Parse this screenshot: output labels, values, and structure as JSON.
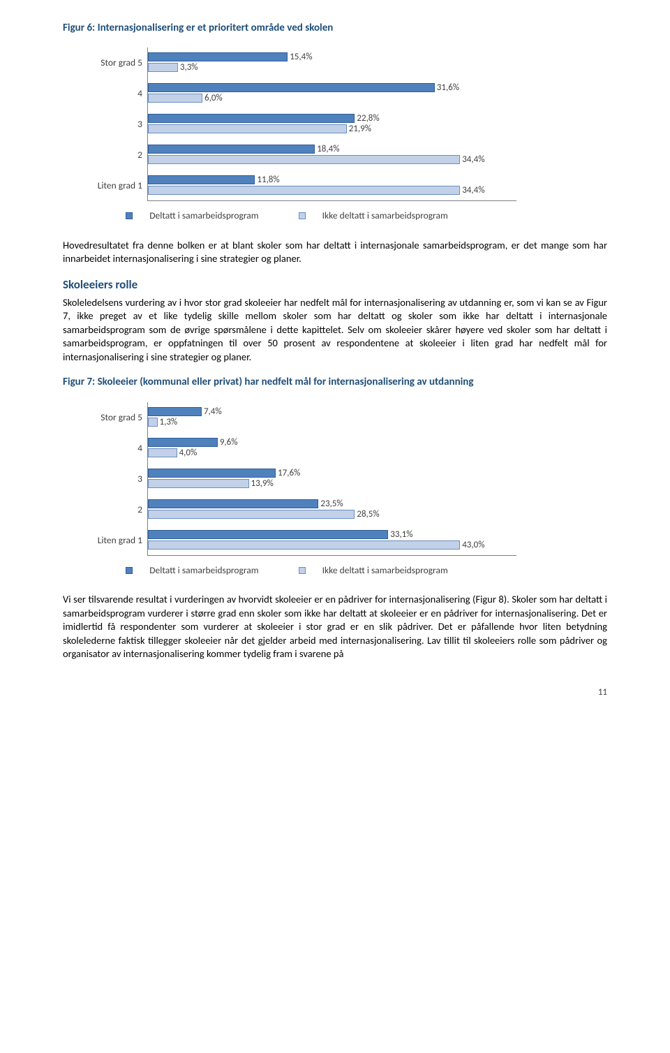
{
  "fig6": {
    "title": "Figur 6: Internasjonalisering er et prioritert område ved skolen",
    "type": "bar",
    "xmax": 40,
    "bar_colors": [
      "#4f81bd",
      "#c2d1e8"
    ],
    "axis_color": "#7f7f7f",
    "categories": [
      {
        "label": "Stor grad 5",
        "v1": 15.4,
        "v2": 3.3,
        "t1": "15,4%",
        "t2": "3,3%"
      },
      {
        "label": "4",
        "v1": 31.6,
        "v2": 6.0,
        "t1": "31,6%",
        "t2": "6,0%"
      },
      {
        "label": "3",
        "v1": 22.8,
        "v2": 21.9,
        "t1": "22,8%",
        "t2": "21,9%"
      },
      {
        "label": "2",
        "v1": 18.4,
        "v2": 34.4,
        "t1": "18,4%",
        "t2": "34,4%"
      },
      {
        "label": "Liten grad 1",
        "v1": 11.8,
        "v2": 34.4,
        "t1": "11,8%",
        "t2": "34,4%"
      }
    ],
    "legend1": "Deltatt i samarbeidsprogram",
    "legend2": "Ikke deltatt i samarbeidsprogram"
  },
  "para1": "Hovedresultatet fra denne bolken er at blant skoler som har deltatt i internasjonale samarbeidsprogram, er det mange som har innarbeidet internasjonalisering i sine strategier og planer.",
  "subheading": "Skoleeiers rolle",
  "para2": "Skoleledelsens vurdering av i hvor stor grad skoleeier har nedfelt mål for internasjonalisering av utdanning er, som vi kan se av Figur 7, ikke preget av et like tydelig skille mellom skoler som har deltatt og skoler som ikke har deltatt i internasjonale samarbeidsprogram som de øvrige spørsmålene i dette kapittelet. Selv om skoleeier skårer høyere ved skoler som har deltatt i samarbeidsprogram, er oppfatningen til over 50 prosent av respondentene at skoleeier i liten grad har nedfelt mål for internasjonalisering i sine strategier og planer.",
  "fig7": {
    "title": "Figur 7: Skoleeier (kommunal eller privat) har nedfelt mål for internasjonalisering av utdanning",
    "type": "bar",
    "xmax": 50,
    "bar_colors": [
      "#4f81bd",
      "#c2d1e8"
    ],
    "axis_color": "#7f7f7f",
    "categories": [
      {
        "label": "Stor grad 5",
        "v1": 7.4,
        "v2": 1.3,
        "t1": "7,4%",
        "t2": "1,3%"
      },
      {
        "label": "4",
        "v1": 9.6,
        "v2": 4.0,
        "t1": "9,6%",
        "t2": "4,0%"
      },
      {
        "label": "3",
        "v1": 17.6,
        "v2": 13.9,
        "t1": "17,6%",
        "t2": "13,9%"
      },
      {
        "label": "2",
        "v1": 23.5,
        "v2": 28.5,
        "t1": "23,5%",
        "t2": "28,5%"
      },
      {
        "label": "Liten grad 1",
        "v1": 33.1,
        "v2": 43.0,
        "t1": "33,1%",
        "t2": "43,0%"
      }
    ],
    "legend1": "Deltatt i samarbeidsprogram",
    "legend2": "Ikke deltatt i samarbeidsprogram"
  },
  "para3": "Vi ser tilsvarende resultat i vurderingen av hvorvidt skoleeier er en pådriver for internasjonalisering (Figur 8). Skoler som har deltatt i samarbeidsprogram vurderer i større grad enn skoler som ikke har deltatt at skoleeier er en pådriver for internasjonalisering. Det er imidlertid få respondenter som vurderer at skoleeier i stor grad er en slik pådriver. Det er påfallende hvor liten betydning skolelederne faktisk tillegger skoleeier når det gjelder arbeid med internasjonalisering. Lav tillit til skoleeiers rolle som pådriver og organisator av internasjonalisering kommer tydelig fram i svarene på",
  "page_number": "11"
}
